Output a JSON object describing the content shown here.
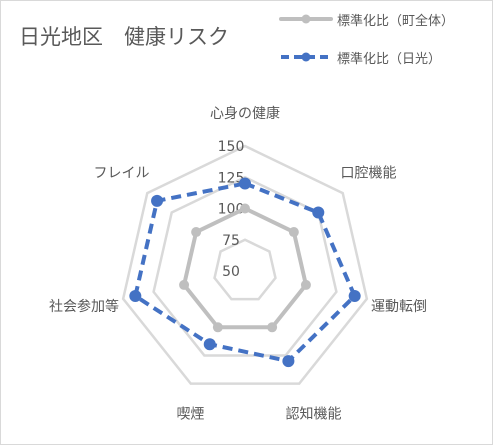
{
  "chart_data": {
    "type": "radar",
    "title": "日光地区　健康リスク",
    "categories": [
      "心身の健康",
      "口腔機能",
      "運動転倒",
      "認知機能",
      "喫煙",
      "社会参加等",
      "フレイル"
    ],
    "tick_labels": [
      "50",
      "75",
      "100",
      "125",
      "150"
    ],
    "rlim": [
      50,
      150
    ],
    "grid": true,
    "legend_position": "top-right",
    "series": [
      {
        "name": "標準化比（町全体）",
        "color": "#bfbfbf",
        "values": [
          100,
          100,
          100,
          100,
          100,
          100,
          100
        ]
      },
      {
        "name": "標準化比（日光）",
        "color": "#4472c4",
        "line_style": "dashed",
        "values": [
          120,
          125,
          140,
          130,
          115,
          140,
          140
        ]
      }
    ]
  }
}
